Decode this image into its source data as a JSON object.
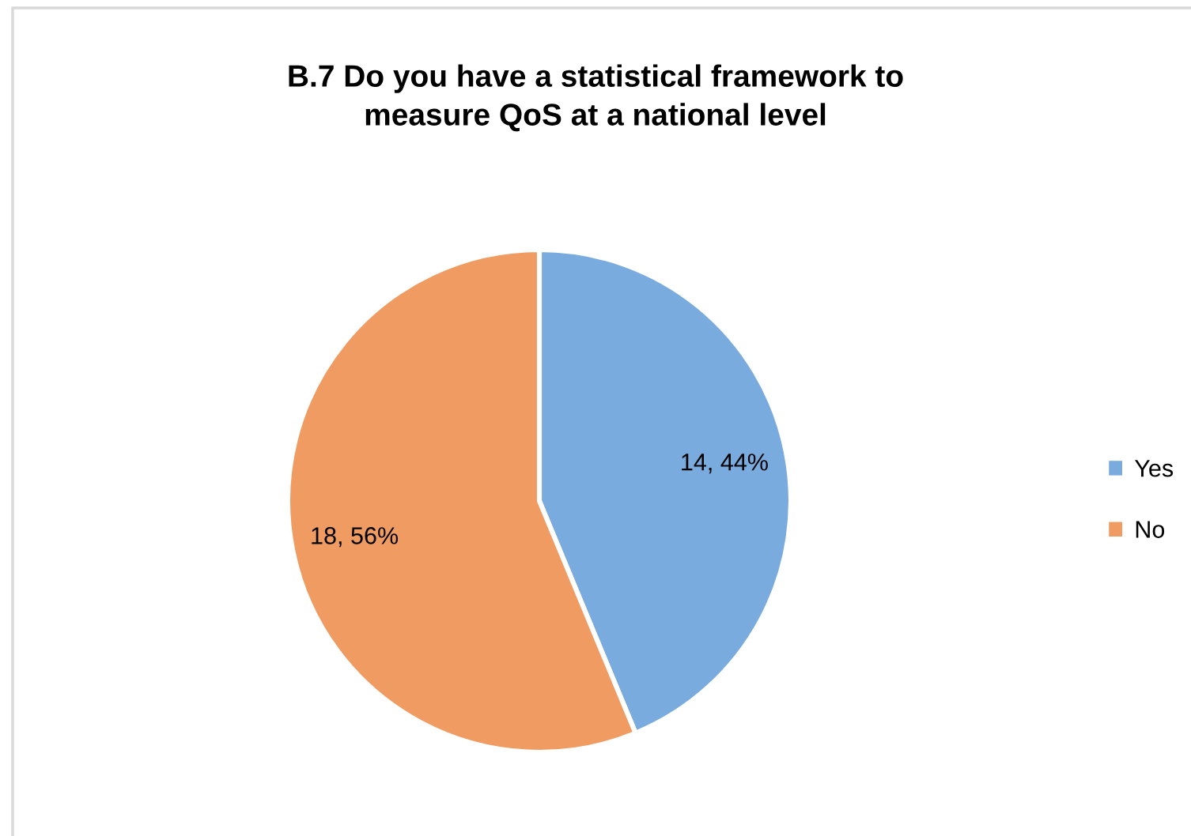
{
  "chart_data": {
    "type": "pie",
    "title": "B.7 Do you have a statistical framework to\nmeasure QoS at a national level",
    "categories": [
      "Yes",
      "No"
    ],
    "values": [
      14,
      18
    ],
    "colors": [
      "#79abde",
      "#f09b62"
    ],
    "value_labels": [
      "14, 44%",
      "18, 56%"
    ],
    "legend": "right"
  }
}
